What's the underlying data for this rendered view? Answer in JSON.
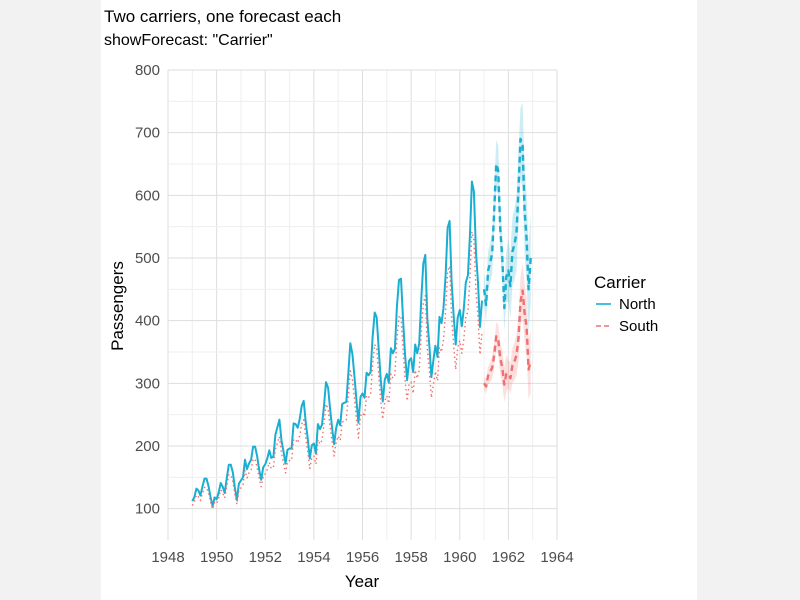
{
  "chart_data": {
    "type": "line",
    "title": "Two carriers, one forecast each",
    "subtitle": "showForecast: \"Carrier\"",
    "xlabel": "Year",
    "ylabel": "Passengers",
    "xlim": [
      1948,
      1964
    ],
    "ylim": [
      50,
      800
    ],
    "x_ticks": [
      1948,
      1950,
      1952,
      1954,
      1956,
      1958,
      1960,
      1962,
      1964
    ],
    "y_ticks": [
      100,
      200,
      300,
      400,
      500,
      600,
      700,
      800
    ],
    "grid": true,
    "legend": {
      "title": "Carrier",
      "placement": "right",
      "entries": [
        "North",
        "South"
      ]
    },
    "series": [
      {
        "name": "North",
        "color": "#1aaed1",
        "style": "solid",
        "start_year": 1949,
        "monthly_values": [
          112,
          118,
          132,
          129,
          121,
          135,
          148,
          148,
          136,
          119,
          104,
          118,
          115,
          126,
          141,
          135,
          125,
          149,
          170,
          170,
          158,
          133,
          114,
          140,
          145,
          150,
          178,
          163,
          172,
          178,
          199,
          199,
          184,
          162,
          146,
          166,
          171,
          180,
          193,
          181,
          183,
          218,
          230,
          242,
          209,
          191,
          172,
          194,
          196,
          196,
          236,
          235,
          229,
          243,
          264,
          272,
          237,
          211,
          180,
          201,
          204,
          188,
          235,
          227,
          234,
          264,
          302,
          293,
          259,
          229,
          203,
          229,
          242,
          233,
          267,
          269,
          270,
          315,
          364,
          347,
          312,
          274,
          237,
          278,
          284,
          277,
          317,
          313,
          318,
          374,
          413,
          405,
          355,
          306,
          271,
          306,
          315,
          301,
          356,
          348,
          355,
          422,
          465,
          467,
          404,
          347,
          305,
          336,
          340,
          318,
          362,
          348,
          363,
          435,
          491,
          505,
          404,
          359,
          310,
          337,
          360,
          342,
          406,
          396,
          420,
          472,
          548,
          559,
          463,
          407,
          362,
          405,
          417,
          391,
          419,
          461,
          472,
          535,
          622,
          606,
          508,
          461,
          390,
          432
        ],
        "forecast": {
          "style": "dashed",
          "start_year": 1961,
          "monthly_values": [
            450,
            425,
            480,
            492,
            508,
            575,
            650,
            640,
            545,
            500,
            420,
            470,
            480,
            455,
            510,
            522,
            540,
            610,
            690,
            680,
            575,
            530,
            450,
            500
          ],
          "lower": [
            425,
            398,
            450,
            460,
            475,
            540,
            612,
            600,
            508,
            463,
            383,
            430,
            430,
            403,
            455,
            465,
            480,
            548,
            625,
            612,
            508,
            460,
            380,
            428
          ],
          "upper": [
            475,
            452,
            510,
            524,
            541,
            610,
            688,
            680,
            582,
            537,
            457,
            510,
            530,
            507,
            565,
            579,
            600,
            672,
            740,
            748,
            642,
            600,
            520,
            572
          ]
        }
      },
      {
        "name": "South",
        "color": "#f07070",
        "style": "dotted",
        "start_year": 1949,
        "monthly_values": [
          105,
          111,
          122,
          119,
          113,
          124,
          134,
          134,
          125,
          111,
          99,
          110,
          108,
          117,
          130,
          125,
          117,
          137,
          154,
          154,
          144,
          123,
          107,
          129,
          133,
          138,
          161,
          149,
          157,
          162,
          179,
          179,
          166,
          148,
          135,
          151,
          156,
          163,
          174,
          164,
          166,
          195,
          205,
          215,
          188,
          173,
          157,
          175,
          177,
          177,
          211,
          210,
          205,
          217,
          235,
          242,
          212,
          190,
          164,
          181,
          184,
          171,
          210,
          203,
          209,
          235,
          267,
          259,
          231,
          206,
          184,
          206,
          216,
          209,
          238,
          240,
          241,
          279,
          320,
          306,
          276,
          244,
          213,
          248,
          253,
          247,
          281,
          278,
          282,
          329,
          362,
          355,
          313,
          272,
          243,
          272,
          280,
          268,
          315,
          308,
          314,
          370,
          406,
          408,
          355,
          307,
          272,
          298,
          302,
          284,
          321,
          308,
          321,
          382,
          428,
          440,
          355,
          318,
          277,
          299,
          319,
          304,
          358,
          350,
          370,
          414,
          478,
          487,
          406,
          359,
          322,
          357,
          368,
          348,
          370,
          406,
          414,
          468,
          542,
          528,
          446,
          406,
          346,
          381
        ],
        "forecast": {
          "style": "dashed",
          "start_year": 1961,
          "monthly_values": [
            300,
            295,
            312,
            318,
            325,
            345,
            375,
            370,
            340,
            325,
            298,
            315,
            315,
            308,
            328,
            335,
            345,
            372,
            430,
            448,
            412,
            390,
            322,
            335
          ],
          "lower": [
            290,
            283,
            298,
            302,
            307,
            325,
            353,
            346,
            314,
            298,
            270,
            285,
            293,
            283,
            300,
            305,
            312,
            335,
            390,
            405,
            366,
            343,
            274,
            285
          ],
          "upper": [
            310,
            307,
            326,
            334,
            343,
            365,
            397,
            394,
            366,
            352,
            326,
            345,
            337,
            333,
            356,
            365,
            378,
            409,
            470,
            492,
            458,
            437,
            370,
            385
          ]
        }
      }
    ]
  }
}
